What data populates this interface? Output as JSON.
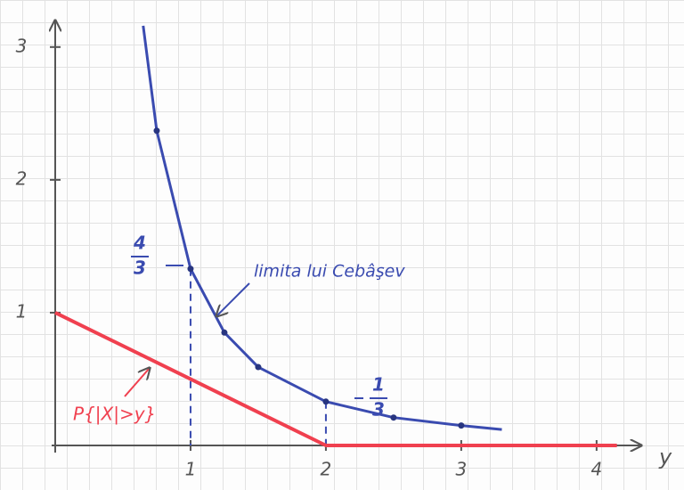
{
  "chart_data": {
    "type": "line",
    "x_label": "y",
    "xlim": [
      0,
      4.33
    ],
    "ylim": [
      0,
      3.2
    ],
    "xticks": [
      1,
      2,
      3,
      4
    ],
    "yticks": [
      1,
      2,
      3
    ],
    "series": [
      {
        "name": "limita lui Cebâşev",
        "color": "#3a4bb0",
        "x": [
          0.65,
          0.75,
          1,
          1.25,
          1.5,
          2,
          2.5,
          3,
          3.3
        ],
        "values": [
          3.16,
          2.37,
          1.33,
          0.85,
          0.59,
          0.33,
          0.21,
          0.15,
          0.12
        ]
      },
      {
        "name": "P{|X|>y}",
        "color": "#f0404f",
        "x": [
          0,
          2,
          4.15
        ],
        "values": [
          1,
          0,
          0
        ]
      }
    ],
    "annotations": [
      {
        "numerator": "4",
        "denominator": "3"
      },
      {
        "numerator": "1",
        "denominator": "3"
      }
    ]
  }
}
